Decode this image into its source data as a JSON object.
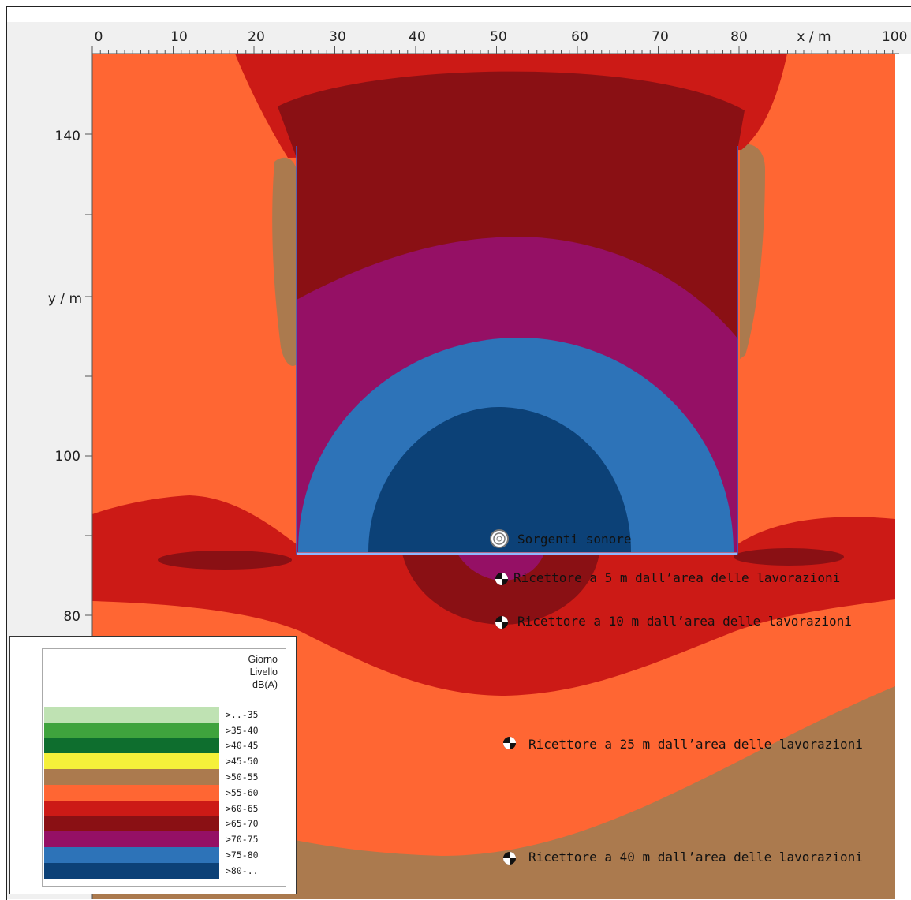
{
  "axes": {
    "x_label": "x / m",
    "y_label": "y / m",
    "x_ticks": [
      "0",
      "10",
      "20",
      "30",
      "40",
      "50",
      "60",
      "70",
      "80",
      "100"
    ],
    "y_ticks": [
      "140",
      "100",
      "80"
    ]
  },
  "map_labels": {
    "source": "Sorgenti sonore",
    "receivers": [
      "Ricettore a 5 m dall’area delle lavorazioni",
      "Ricettore a 10 m dall’area delle lavorazioni",
      "Ricettore a 25 m dall’area delle lavorazioni",
      "Ricettore a 40 m dall’area delle lavorazioni"
    ]
  },
  "legend": {
    "title_lines": [
      "Giorno",
      "Livello",
      "dB(A)"
    ],
    "entries": [
      {
        "label": ">..-35",
        "color": "#bfe2b3"
      },
      {
        "label": ">35-40",
        "color": "#3fa33d"
      },
      {
        "label": ">40-45",
        "color": "#0e6e2e"
      },
      {
        "label": ">45-50",
        "color": "#f5f03a"
      },
      {
        "label": ">50-55",
        "color": "#ab7a4e"
      },
      {
        "label": ">55-60",
        "color": "#ff6633"
      },
      {
        "label": ">60-65",
        "color": "#cc1a16"
      },
      {
        "label": ">65-70",
        "color": "#8a1014"
      },
      {
        "label": ">70-75",
        "color": "#951065"
      },
      {
        "label": ">75-80",
        "color": "#2d73b8"
      },
      {
        "label": ">80-..",
        "color": "#0c4177"
      }
    ]
  }
}
